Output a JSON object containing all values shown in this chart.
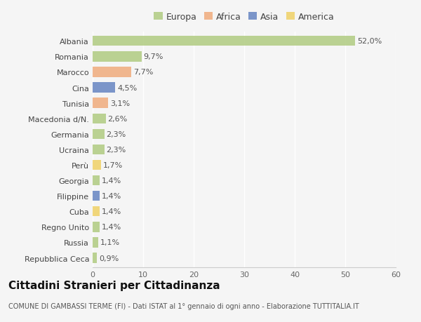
{
  "categories": [
    "Albania",
    "Romania",
    "Marocco",
    "Cina",
    "Tunisia",
    "Macedonia d/N.",
    "Germania",
    "Ucraina",
    "Perù",
    "Georgia",
    "Filippine",
    "Cuba",
    "Regno Unito",
    "Russia",
    "Repubblica Ceca"
  ],
  "values": [
    52.0,
    9.7,
    7.7,
    4.5,
    3.1,
    2.6,
    2.3,
    2.3,
    1.7,
    1.4,
    1.4,
    1.4,
    1.4,
    1.1,
    0.9
  ],
  "labels": [
    "52,0%",
    "9,7%",
    "7,7%",
    "4,5%",
    "3,1%",
    "2,6%",
    "2,3%",
    "2,3%",
    "1,7%",
    "1,4%",
    "1,4%",
    "1,4%",
    "1,4%",
    "1,1%",
    "0,9%"
  ],
  "continents": [
    "Europa",
    "Europa",
    "Africa",
    "Asia",
    "Africa",
    "Europa",
    "Europa",
    "Europa",
    "America",
    "Europa",
    "Asia",
    "America",
    "Europa",
    "Europa",
    "Europa"
  ],
  "continent_colors": {
    "Europa": "#adc97c",
    "Africa": "#f0a878",
    "Asia": "#6080c0",
    "America": "#f0d060"
  },
  "legend_order": [
    "Europa",
    "Africa",
    "Asia",
    "America"
  ],
  "xlim": [
    0,
    60
  ],
  "xticks": [
    0,
    10,
    20,
    30,
    40,
    50,
    60
  ],
  "title": "Cittadini Stranieri per Cittadinanza",
  "subtitle": "COMUNE DI GAMBASSI TERME (FI) - Dati ISTAT al 1° gennaio di ogni anno - Elaborazione TUTTITALIA.IT",
  "background_color": "#f5f5f5",
  "bar_height": 0.65,
  "grid_color": "#ffffff",
  "title_fontsize": 11,
  "subtitle_fontsize": 7,
  "label_fontsize": 8,
  "tick_fontsize": 8,
  "legend_fontsize": 9
}
